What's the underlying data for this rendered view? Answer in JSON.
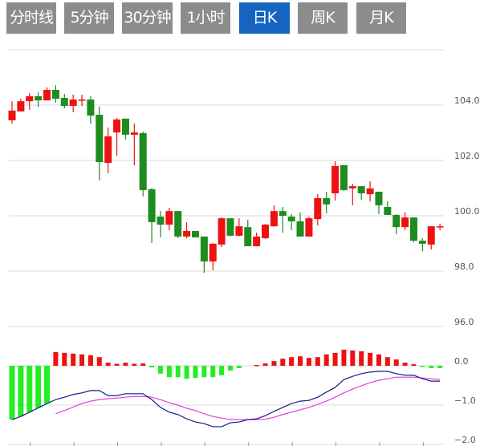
{
  "tabs": [
    {
      "label": "分时线",
      "active": false
    },
    {
      "label": "5分钟",
      "active": false
    },
    {
      "label": "30分钟",
      "active": false
    },
    {
      "label": "1小时",
      "active": false
    },
    {
      "label": "日K",
      "active": true
    },
    {
      "label": "周K",
      "active": false
    },
    {
      "label": "月K",
      "active": false
    }
  ],
  "colors": {
    "tab_bg": "#8c8c8c",
    "tab_active_bg": "#1565c0",
    "up": "#ee1111",
    "down": "#1e8c1e",
    "hist_up": "#ee1111",
    "hist_down": "#22ee22",
    "dif": "#1a1a8c",
    "dea": "#e040e0",
    "grid": "#d8d8d8"
  },
  "chart_data": [
    {
      "type": "candlestick",
      "title": "",
      "y_ticks": [
        "104.0",
        "102.0",
        "100.0",
        "98.0",
        "96.0"
      ],
      "ylim": [
        96,
        106
      ],
      "grid": true,
      "up_color_meaning": "red = close above open",
      "ohlc": [
        [
          103.45,
          104.14,
          103.33,
          103.8
        ],
        [
          103.77,
          104.23,
          103.77,
          104.14
        ],
        [
          104.14,
          104.43,
          103.83,
          104.32
        ],
        [
          104.32,
          104.46,
          103.94,
          104.17
        ],
        [
          104.17,
          104.64,
          104.17,
          104.55
        ],
        [
          104.55,
          104.72,
          104.09,
          104.23
        ],
        [
          104.26,
          104.41,
          103.88,
          103.97
        ],
        [
          103.97,
          104.38,
          103.74,
          104.2
        ],
        [
          104.17,
          104.38,
          103.97,
          104.2
        ],
        [
          104.2,
          104.32,
          103.33,
          103.62
        ],
        [
          103.65,
          103.94,
          101.28,
          101.94
        ],
        [
          101.91,
          103.19,
          101.54,
          102.87
        ],
        [
          103.01,
          103.54,
          102.17,
          103.48
        ],
        [
          103.51,
          103.51,
          102.75,
          102.93
        ],
        [
          102.93,
          103.33,
          101.83,
          103.01
        ],
        [
          102.99,
          103.04,
          100.7,
          100.93
        ],
        [
          100.96,
          101.01,
          99.01,
          99.77
        ],
        [
          99.97,
          100.17,
          99.22,
          99.68
        ],
        [
          99.68,
          100.29,
          99.48,
          100.17
        ],
        [
          100.17,
          100.17,
          99.19,
          99.25
        ],
        [
          99.25,
          99.77,
          99.19,
          99.45
        ],
        [
          99.45,
          99.45,
          99.22,
          99.22
        ],
        [
          99.25,
          99.25,
          97.94,
          98.35
        ],
        [
          98.35,
          99.01,
          98.03,
          98.99
        ],
        [
          98.96,
          99.94,
          98.87,
          99.91
        ],
        [
          99.91,
          99.91,
          99.25,
          99.28
        ],
        [
          99.28,
          99.91,
          99.25,
          99.62
        ],
        [
          99.59,
          99.86,
          98.9,
          98.9
        ],
        [
          98.9,
          99.39,
          98.9,
          99.25
        ],
        [
          99.19,
          99.71,
          99.16,
          99.68
        ],
        [
          99.62,
          100.38,
          99.62,
          100.17
        ],
        [
          100.17,
          100.32,
          99.39,
          100.0
        ],
        [
          99.97,
          100.06,
          99.48,
          99.8
        ],
        [
          99.8,
          100.12,
          99.25,
          99.25
        ],
        [
          99.25,
          99.97,
          99.25,
          99.91
        ],
        [
          99.88,
          100.78,
          99.65,
          100.64
        ],
        [
          100.64,
          100.87,
          100.09,
          100.41
        ],
        [
          100.81,
          101.97,
          100.55,
          101.8
        ],
        [
          101.83,
          101.83,
          100.9,
          100.93
        ],
        [
          100.99,
          101.16,
          100.38,
          101.07
        ],
        [
          101.07,
          101.07,
          100.58,
          100.81
        ],
        [
          100.78,
          101.25,
          100.52,
          100.99
        ],
        [
          100.87,
          100.87,
          100.06,
          100.38
        ],
        [
          100.32,
          100.52,
          100.03,
          100.03
        ],
        [
          100.03,
          100.06,
          99.33,
          99.59
        ],
        [
          99.59,
          100.12,
          99.48,
          99.94
        ],
        [
          99.94,
          99.94,
          99.04,
          99.1
        ],
        [
          99.1,
          99.19,
          98.72,
          98.99
        ],
        [
          98.96,
          99.62,
          98.78,
          99.62
        ],
        [
          99.59,
          99.71,
          99.48,
          99.62
        ]
      ]
    },
    {
      "type": "bar+line",
      "title": "",
      "y_ticks": [
        "0.0",
        "-1.0",
        "-2.0"
      ],
      "ylim": [
        -2,
        1
      ],
      "grid": true,
      "histogram": [
        -1.37,
        -1.29,
        -1.18,
        -1.07,
        -0.96,
        0.35,
        0.33,
        0.31,
        0.29,
        0.27,
        0.22,
        0.08,
        0.05,
        0.08,
        0.05,
        0.06,
        -0.04,
        -0.2,
        -0.29,
        -0.29,
        -0.33,
        -0.31,
        -0.29,
        -0.29,
        -0.24,
        -0.12,
        -0.06,
        0.0,
        0.02,
        0.06,
        0.12,
        0.18,
        0.22,
        0.24,
        0.2,
        0.22,
        0.29,
        0.33,
        0.41,
        0.39,
        0.37,
        0.33,
        0.29,
        0.22,
        0.16,
        0.08,
        0.04,
        -0.01,
        -0.06,
        -0.06
      ],
      "dif": [
        -1.37,
        -1.29,
        -1.18,
        -1.07,
        -0.96,
        -0.86,
        -0.8,
        -0.73,
        -0.69,
        -0.63,
        -0.63,
        -0.76,
        -0.76,
        -0.71,
        -0.71,
        -0.71,
        -0.86,
        -1.06,
        -1.18,
        -1.24,
        -1.35,
        -1.43,
        -1.47,
        -1.55,
        -1.55,
        -1.45,
        -1.43,
        -1.37,
        -1.35,
        -1.27,
        -1.16,
        -1.06,
        -0.96,
        -0.9,
        -0.88,
        -0.8,
        -0.67,
        -0.55,
        -0.35,
        -0.27,
        -0.2,
        -0.16,
        -0.14,
        -0.14,
        -0.2,
        -0.24,
        -0.24,
        -0.33,
        -0.39,
        -0.39
      ],
      "dea": [
        null,
        null,
        null,
        null,
        null,
        -1.22,
        -1.14,
        -1.05,
        -0.96,
        -0.9,
        -0.86,
        -0.84,
        -0.82,
        -0.8,
        -0.78,
        -0.78,
        -0.8,
        -0.86,
        -0.94,
        -1.0,
        -1.08,
        -1.14,
        -1.22,
        -1.29,
        -1.33,
        -1.37,
        -1.37,
        -1.37,
        -1.37,
        -1.36,
        -1.31,
        -1.24,
        -1.18,
        -1.12,
        -1.06,
        -0.98,
        -0.9,
        -0.8,
        -0.69,
        -0.59,
        -0.51,
        -0.43,
        -0.37,
        -0.33,
        -0.29,
        -0.29,
        -0.29,
        -0.31,
        -0.33,
        -0.35
      ]
    }
  ]
}
